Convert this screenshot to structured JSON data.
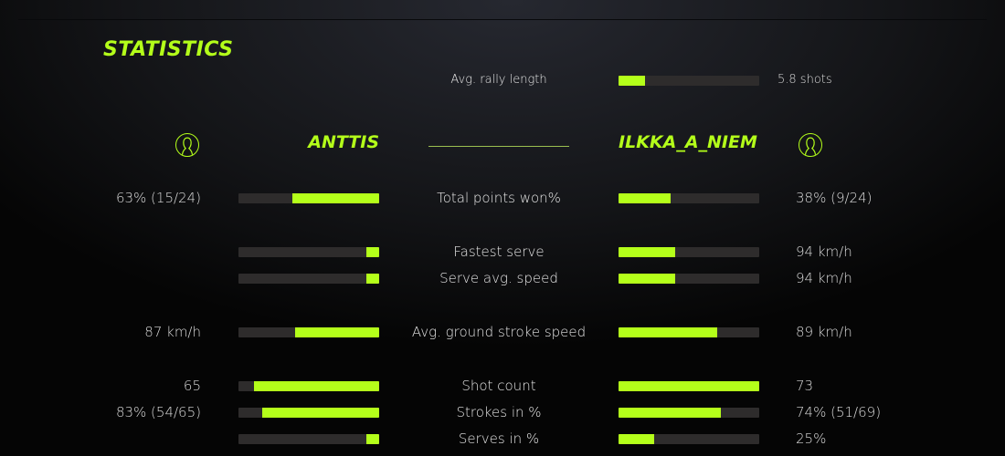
{
  "title": "STATISTICS",
  "accent": "#b4ff1a",
  "rally": {
    "label": "Avg. rally length",
    "value": "5.8 shots",
    "fill": 0.19
  },
  "players": {
    "left": {
      "name": "ANTTIS",
      "icon": "user-icon"
    },
    "right": {
      "name": "ILKKA_A_NIEM",
      "icon": "user-icon"
    }
  },
  "stats": [
    {
      "label": "Total points won%",
      "left": "63% (15/24)",
      "right": "38% (9/24)",
      "left_fill": 0.62,
      "right_fill": 0.37
    },
    {
      "label": "Fastest serve",
      "left": "",
      "right": "94 km/h",
      "left_fill": 0.09,
      "right_fill": 0.4
    },
    {
      "label": "Serve avg. speed",
      "left": "",
      "right": "94 km/h",
      "left_fill": 0.09,
      "right_fill": 0.4
    },
    {
      "label": "Avg. ground stroke speed",
      "left": "87 km/h",
      "right": "89 km/h",
      "left_fill": 0.6,
      "right_fill": 0.7
    },
    {
      "label": "Shot count",
      "left": "65",
      "right": "73",
      "left_fill": 0.89,
      "right_fill": 1.0
    },
    {
      "label": "Strokes in %",
      "left": "83% (54/65)",
      "right": "74% (51/69)",
      "left_fill": 0.83,
      "right_fill": 0.73
    },
    {
      "label": "Serves in %",
      "left": "",
      "right": "25%",
      "left_fill": 0.09,
      "right_fill": 0.25
    }
  ]
}
